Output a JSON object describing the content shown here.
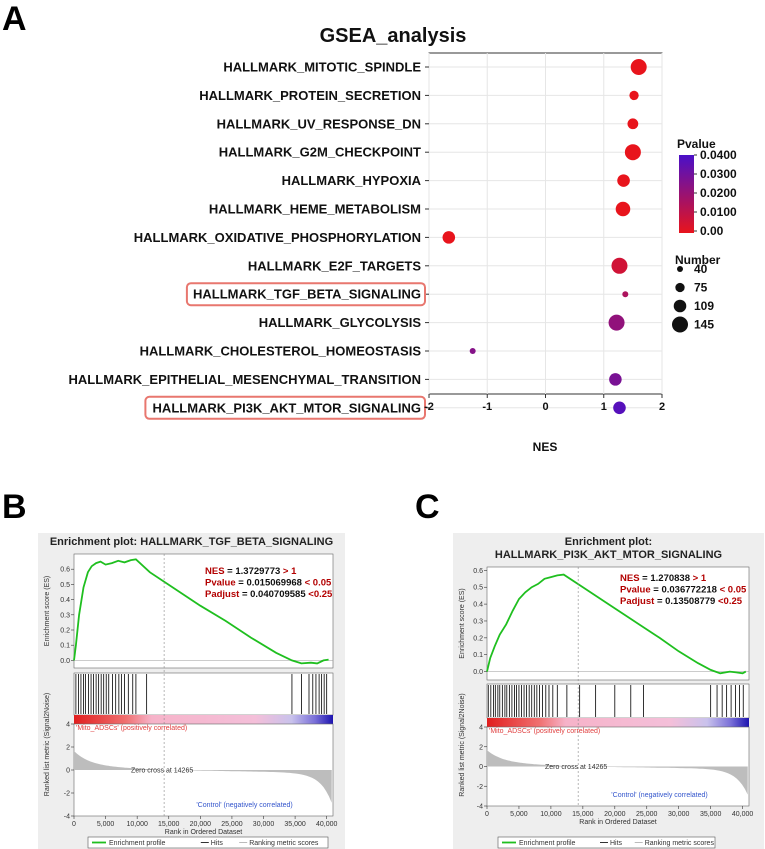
{
  "panel_letters": {
    "a": "A",
    "b": "B",
    "c": "C"
  },
  "chart_data": [
    {
      "type": "scatter",
      "title": "GSEA_analysis",
      "xlabel": "NES",
      "xlim": [
        -2,
        2
      ],
      "xticks": [
        -2,
        -1,
        0,
        1,
        2
      ],
      "xtick_labels": [
        "-2",
        "-1",
        "0",
        "1",
        "2"
      ],
      "terms": [
        {
          "name": "HALLMARK_MITOTIC_SPINDLE",
          "nes": 1.6,
          "pvalue": 0.0,
          "number": 145,
          "highlight": false
        },
        {
          "name": "HALLMARK_PROTEIN_SECRETION",
          "nes": 1.52,
          "pvalue": 0.0,
          "number": 75,
          "highlight": false
        },
        {
          "name": "HALLMARK_UV_RESPONSE_DN",
          "nes": 1.5,
          "pvalue": 0.0,
          "number": 90,
          "highlight": false
        },
        {
          "name": "HALLMARK_G2M_CHECKPOINT",
          "nes": 1.5,
          "pvalue": 0.0,
          "number": 145,
          "highlight": false
        },
        {
          "name": "HALLMARK_HYPOXIA",
          "nes": 1.34,
          "pvalue": 0.0,
          "number": 109,
          "highlight": false
        },
        {
          "name": "HALLMARK_HEME_METABOLISM",
          "nes": 1.33,
          "pvalue": 0.0,
          "number": 130,
          "highlight": false
        },
        {
          "name": "HALLMARK_OXIDATIVE_PHOSPHORYLATION",
          "nes": -1.66,
          "pvalue": 0.0,
          "number": 109,
          "highlight": false
        },
        {
          "name": "HALLMARK_E2F_TARGETS",
          "nes": 1.27,
          "pvalue": 0.006,
          "number": 145,
          "highlight": false
        },
        {
          "name": "HALLMARK_TGF_BETA_SIGNALING",
          "nes": 1.37,
          "pvalue": 0.015,
          "number": 40,
          "highlight": true
        },
        {
          "name": "HALLMARK_GLYCOLYSIS",
          "nes": 1.22,
          "pvalue": 0.022,
          "number": 145,
          "highlight": false
        },
        {
          "name": "HALLMARK_CHOLESTEROL_HOMEOSTASIS",
          "nes": -1.25,
          "pvalue": 0.025,
          "number": 40,
          "highlight": false
        },
        {
          "name": "HALLMARK_EPITHELIAL_MESENCHYMAL_TRANSITION",
          "nes": 1.2,
          "pvalue": 0.028,
          "number": 109,
          "highlight": false
        },
        {
          "name": "HALLMARK_PI3K_AKT_MTOR_SIGNALING",
          "nes": 1.27,
          "pvalue": 0.037,
          "number": 109,
          "highlight": true
        }
      ],
      "legend_pvalue": {
        "title": "Pvalue",
        "labels": [
          "0.0400",
          "0.0300",
          "0.0200",
          "0.0100",
          "0.00"
        ],
        "values": [
          0.04,
          0.03,
          0.02,
          0.01,
          0.0
        ],
        "color_low": "#e8141c",
        "color_high": "#4a10c8"
      },
      "legend_number": {
        "title": "Number",
        "labels": [
          "40",
          "75",
          "109",
          "145"
        ],
        "values": [
          40,
          75,
          109,
          145
        ]
      }
    },
    {
      "type": "line",
      "title": "Enrichment plot: HALLMARK_TGF_BETA_SIGNALING",
      "ylabel": "Enrichment score (ES)",
      "ylim": [
        -0.05,
        0.7
      ],
      "yticks": [
        0.0,
        0.1,
        0.2,
        0.3,
        0.4,
        0.5,
        0.6
      ],
      "xlabel": "Rank in Ordered Dataset",
      "xlim": [
        0,
        41000
      ],
      "xticks": [
        0,
        5000,
        10000,
        15000,
        20000,
        25000,
        30000,
        35000,
        40000
      ],
      "xtick_labels": [
        "0",
        "5,000",
        "10,000",
        "15,000",
        "20,000",
        "25,000",
        "30,000",
        "35,000",
        "40,000"
      ],
      "es_curve": {
        "x": [
          0,
          300,
          800,
          1500,
          2200,
          2800,
          3500,
          4200,
          5000,
          6000,
          7000,
          8000,
          9000,
          9800,
          12000,
          16000,
          20000,
          24000,
          28000,
          32000,
          34500,
          36000,
          37500,
          38500,
          39500,
          40300
        ],
        "y": [
          0.0,
          0.1,
          0.3,
          0.48,
          0.58,
          0.62,
          0.64,
          0.65,
          0.63,
          0.64,
          0.655,
          0.645,
          0.66,
          0.665,
          0.58,
          0.47,
          0.36,
          0.26,
          0.15,
          0.05,
          0.0,
          -0.02,
          -0.015,
          -0.02,
          0.0,
          0.005
        ]
      },
      "hits": [
        300,
        700,
        1100,
        1500,
        1800,
        2300,
        2700,
        3100,
        3500,
        3900,
        4300,
        4700,
        5100,
        5500,
        6100,
        6600,
        7100,
        7500,
        8000,
        8600,
        9300,
        9800,
        11500,
        34500,
        36000,
        37200,
        37800,
        38300,
        38800,
        39200,
        39600,
        40000
      ],
      "ranked_ylabel": "Ranked list metric (Signal2Noise)",
      "ranked_yticks": [
        4,
        2,
        0,
        -2,
        -4
      ],
      "pos_label": "'Mito_ADSCs' (positively correlated)",
      "neg_label": "'Control' (negatively correlated)",
      "zero_cross": "Zero cross at 14265",
      "zero_cross_x": 14265,
      "stats": [
        {
          "label": "NES",
          "value": " = 1.3729773 ",
          "cond": "> 1"
        },
        {
          "label": "Pvalue",
          "value": " = 0.015069968 ",
          "cond": "< 0.05"
        },
        {
          "label": "Padjust",
          "value": " = 0.040709585 ",
          "cond": "<0.25"
        }
      ],
      "legend": [
        "Enrichment profile",
        "Hits",
        "Ranking metric scores"
      ],
      "colors": {
        "curve": "#1fbf1f",
        "stat_label": "#b30000",
        "stat_value": "#111111"
      }
    },
    {
      "type": "line",
      "title_line1": "Enrichment plot:",
      "title_line2": "HALLMARK_PI3K_AKT_MTOR_SIGNALING",
      "ylabel": "Enrichment score (ES)",
      "ylim": [
        -0.05,
        0.62
      ],
      "yticks": [
        0.0,
        0.1,
        0.2,
        0.3,
        0.4,
        0.5,
        0.6
      ],
      "xlabel": "Rank in Ordered Dataset",
      "xlim": [
        0,
        41000
      ],
      "xticks": [
        0,
        5000,
        10000,
        15000,
        20000,
        25000,
        30000,
        35000,
        40000
      ],
      "xtick_labels": [
        "0",
        "5,000",
        "10,000",
        "15,000",
        "20,000",
        "25,000",
        "30,000",
        "35,000",
        "40,000"
      ],
      "es_curve": {
        "x": [
          0,
          500,
          1200,
          2000,
          3000,
          4000,
          5000,
          6000,
          7000,
          8000,
          9000,
          10000,
          11000,
          12000,
          15000,
          19000,
          23000,
          27000,
          30000,
          33000,
          35000,
          36500,
          38000,
          39000,
          40000,
          40500
        ],
        "y": [
          0.0,
          0.08,
          0.15,
          0.22,
          0.28,
          0.36,
          0.43,
          0.47,
          0.5,
          0.52,
          0.55,
          0.56,
          0.57,
          0.575,
          0.5,
          0.4,
          0.3,
          0.2,
          0.12,
          0.05,
          0.01,
          -0.01,
          0.0,
          -0.005,
          -0.01,
          0.0
        ]
      },
      "hits": [
        200,
        600,
        1000,
        1300,
        1700,
        2000,
        2400,
        2800,
        3100,
        3500,
        3900,
        4300,
        4600,
        5000,
        5400,
        5800,
        6200,
        6600,
        7000,
        7400,
        7800,
        8200,
        8700,
        9200,
        9700,
        10300,
        11000,
        12500,
        14500,
        17000,
        20000,
        22500,
        24500,
        35000,
        36000,
        36800,
        37500,
        38200,
        38900,
        39500,
        40100
      ],
      "ranked_ylabel": "Ranked list metric (Signal2Noise)",
      "ranked_yticks": [
        4,
        2,
        0,
        -2,
        -4
      ],
      "pos_label": "'Mito_ADSCs' (positively correlated)",
      "neg_label": "'Control' (negatively correlated)",
      "zero_cross": "Zero cross at 14265",
      "zero_cross_x": 14265,
      "stats": [
        {
          "label": "NES",
          "value": " = 1.270838 ",
          "cond": "> 1"
        },
        {
          "label": "Pvalue",
          "value": " = 0.036772218 ",
          "cond": "< 0.05"
        },
        {
          "label": "Padjust",
          "value": " = 0.13508779 ",
          "cond": "<0.25"
        }
      ],
      "legend": [
        "Enrichment profile",
        "Hits",
        "Ranking metric scores"
      ],
      "colors": {
        "curve": "#1fbf1f",
        "stat_label": "#b30000",
        "stat_value": "#111111"
      }
    }
  ]
}
